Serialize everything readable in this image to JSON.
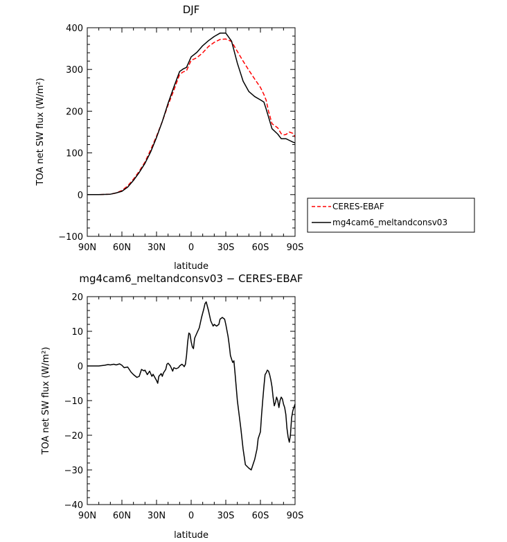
{
  "chart_data": [
    {
      "type": "line",
      "title": "DJF",
      "xlabel": "latitude",
      "ylabel": "TOA net SW flux (W/m²)",
      "xlim": [
        90,
        -90
      ],
      "ylim": [
        -100,
        400
      ],
      "x_ticks": [
        90,
        60,
        30,
        0,
        -30,
        -60,
        -90
      ],
      "x_tick_labels": [
        "90N",
        "60N",
        "30N",
        "0",
        "30S",
        "60S",
        "90S"
      ],
      "y_ticks": [
        -100,
        0,
        100,
        200,
        300,
        400
      ],
      "y_tick_labels": [
        "−100",
        "0",
        "100",
        "200",
        "300",
        "400"
      ],
      "legend_position": "right",
      "series": [
        {
          "name": "CERES-EBAF",
          "color": "#ff0000",
          "dash": "dashed",
          "x": [
            90,
            80,
            70,
            65,
            60,
            55,
            50,
            45,
            40,
            35,
            30,
            25,
            20,
            15,
            10,
            7,
            4,
            0,
            -5,
            -10,
            -15,
            -20,
            -25,
            -30,
            -35,
            -40,
            -45,
            -50,
            -55,
            -60,
            -63,
            -65,
            -67,
            -70,
            -75,
            -78,
            -80,
            -82,
            -85,
            -88,
            -90
          ],
          "y": [
            0,
            0,
            1,
            4,
            10,
            21,
            37,
            56,
            78,
            108,
            140,
            175,
            215,
            250,
            288,
            294,
            297,
            322,
            328,
            340,
            355,
            365,
            372,
            373,
            367,
            343,
            320,
            298,
            277,
            257,
            240,
            226,
            200,
            170,
            160,
            146,
            143,
            144,
            150,
            147,
            138
          ]
        },
        {
          "name": "mg4cam6_meltandconsv03",
          "color": "#000000",
          "dash": "solid",
          "x": [
            90,
            80,
            70,
            65,
            60,
            55,
            50,
            45,
            40,
            35,
            30,
            25,
            20,
            15,
            10,
            7,
            4,
            0,
            -5,
            -10,
            -15,
            -20,
            -25,
            -30,
            -35,
            -40,
            -45,
            -50,
            -55,
            -60,
            -63,
            -65,
            -67,
            -70,
            -75,
            -78,
            -80,
            -82,
            -85,
            -88,
            -90
          ],
          "y": [
            0,
            0,
            1,
            4,
            8,
            18,
            34,
            53,
            75,
            103,
            137,
            175,
            219,
            258,
            295,
            301,
            305,
            330,
            341,
            357,
            369,
            379,
            387,
            387,
            368,
            315,
            272,
            247,
            235,
            227,
            222,
            205,
            186,
            158,
            145,
            134,
            134,
            134,
            130,
            126,
            124
          ]
        }
      ]
    },
    {
      "type": "line",
      "title": "mg4cam6_meltandconsv03 − CERES-EBAF",
      "xlabel": "latitude",
      "ylabel": "TOA net SW flux (W/m²)",
      "xlim": [
        90,
        -90
      ],
      "ylim": [
        -40,
        20
      ],
      "x_ticks": [
        90,
        60,
        30,
        0,
        -30,
        -60,
        -90
      ],
      "x_tick_labels": [
        "90N",
        "60N",
        "30N",
        "0",
        "30S",
        "60S",
        "90S"
      ],
      "y_ticks": [
        -40,
        -30,
        -20,
        -10,
        0,
        10,
        20
      ],
      "y_tick_labels": [
        "−40",
        "−30",
        "−20",
        "−10",
        "0",
        "10",
        "20"
      ],
      "series": [
        {
          "color": "#000000",
          "x": [
            90,
            80,
            75,
            72,
            70,
            67,
            65,
            62,
            60,
            58,
            55,
            52,
            50,
            47,
            45,
            43,
            41,
            40,
            38,
            36,
            34,
            33,
            32,
            30,
            29,
            28,
            26,
            25,
            24,
            22,
            21,
            20,
            18,
            16,
            15,
            13,
            11,
            10,
            8,
            7,
            6,
            5,
            4,
            3,
            2,
            1,
            0,
            -1,
            -2,
            -3,
            -5,
            -7,
            -9,
            -11,
            -12,
            -13,
            -15,
            -17,
            -19,
            -20,
            -22,
            -24,
            -25,
            -27,
            -29,
            -30,
            -32,
            -33,
            -34,
            -35,
            -36,
            -37,
            -38,
            -40,
            -43,
            -45,
            -47,
            -50,
            -52,
            -54,
            -55,
            -57,
            -58,
            -60,
            -61,
            -62,
            -63,
            -64,
            -65,
            -66,
            -67,
            -68,
            -69,
            -70,
            -71,
            -72,
            -73,
            -74,
            -75,
            -76,
            -77,
            -78,
            -79,
            -80,
            -81,
            -82,
            -83,
            -84,
            -85,
            -86,
            -87,
            -88,
            -89,
            -90
          ],
          "y": [
            0,
            0,
            0.2,
            0.4,
            0.3,
            0.5,
            0.3,
            0.6,
            0.2,
            -0.5,
            -0.3,
            -1.8,
            -2.5,
            -3.3,
            -3,
            -1,
            -1.4,
            -1.2,
            -2.5,
            -1.5,
            -3,
            -2.4,
            -3,
            -4.2,
            -5,
            -3,
            -2.2,
            -3,
            -2,
            -1,
            0.5,
            0.8,
            0,
            -1.5,
            -0.5,
            -0.8,
            -0.5,
            0,
            0.5,
            0.2,
            -0.2,
            0.5,
            3,
            7,
            9.5,
            9.2,
            7,
            5.5,
            5,
            8,
            9.5,
            11,
            14,
            16.5,
            18,
            18.5,
            16,
            13,
            11.5,
            12,
            11.5,
            12,
            13.5,
            14,
            13.5,
            12,
            8.5,
            6,
            3,
            2,
            1,
            1.5,
            -2,
            -10,
            -18,
            -24,
            -28.5,
            -29.5,
            -30,
            -28,
            -27,
            -24,
            -21,
            -19,
            -14,
            -10,
            -6,
            -2.5,
            -2,
            -1.2,
            -1.5,
            -2.5,
            -4,
            -6,
            -9,
            -11.5,
            -10.5,
            -9,
            -10,
            -12,
            -10,
            -9,
            -9.5,
            -11,
            -12,
            -14,
            -18,
            -20.5,
            -22,
            -20,
            -15,
            -13,
            -12,
            -11
          ]
        }
      ]
    }
  ]
}
